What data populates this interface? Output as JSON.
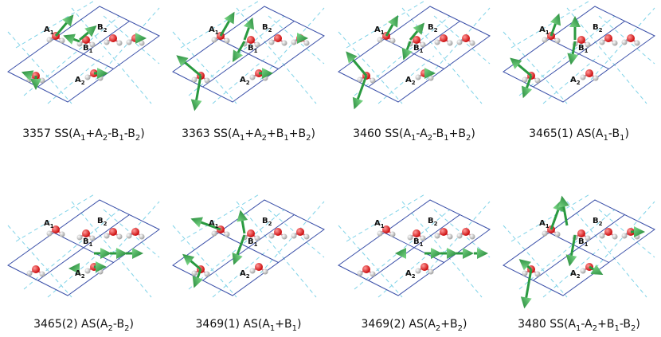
{
  "panels": [
    {
      "caption": [
        "3357 SS(A",
        "1",
        "+A",
        "2",
        "-B",
        "1",
        "-B",
        "2",
        ")"
      ],
      "atoms": [
        [
          "A",
          "1"
        ],
        [
          "B",
          "2"
        ],
        [
          "B",
          "1"
        ],
        [
          "A",
          "2"
        ]
      ]
    },
    {
      "caption": [
        "3363 SS(A",
        "1",
        "+A",
        "2",
        "+B",
        "1",
        "+B",
        "2",
        ")"
      ],
      "atoms": [
        [
          "A",
          "1"
        ],
        [
          "B",
          "2"
        ],
        [
          "B",
          "1"
        ],
        [
          "A",
          "2"
        ]
      ]
    },
    {
      "caption": [
        "3460 SS(A",
        "1",
        "-A",
        "2",
        "-B",
        "1",
        "+B",
        "2",
        ")"
      ],
      "atoms": [
        [
          "A",
          "1"
        ],
        [
          "B",
          "2"
        ],
        [
          "B",
          "1"
        ],
        [
          "A",
          "2"
        ]
      ]
    },
    {
      "caption": [
        "3465(1) AS(A",
        "1",
        "-B",
        "1",
        ")"
      ],
      "atoms": [
        [
          "A",
          "1"
        ],
        [
          "B",
          "2"
        ],
        [
          "B",
          "1"
        ],
        [
          "A",
          "2"
        ]
      ]
    },
    {
      "caption": [
        "3465(2) AS(A",
        "2",
        "-B",
        "2",
        ")"
      ],
      "atoms": [
        [
          "A",
          "1"
        ],
        [
          "B",
          "2"
        ],
        [
          "B",
          "1"
        ],
        [
          "A",
          "2"
        ]
      ]
    },
    {
      "caption": [
        "3469(1) AS(A",
        "1",
        "+B",
        "1",
        ")"
      ],
      "atoms": [
        [
          "A",
          "1"
        ],
        [
          "B",
          "2"
        ],
        [
          "B",
          "1"
        ],
        [
          "A",
          "2"
        ]
      ]
    },
    {
      "caption": [
        "3469(2) AS(A",
        "2",
        "+B",
        "2",
        ")"
      ],
      "atoms": [
        [
          "A",
          "1"
        ],
        [
          "B",
          "2"
        ],
        [
          "B",
          "1"
        ],
        [
          "A",
          "2"
        ]
      ]
    },
    {
      "caption": [
        "3480 SS(A",
        "1",
        "-A",
        "2",
        "+B",
        "1",
        "-B",
        "2",
        ")"
      ],
      "atoms": [
        [
          "A",
          "1"
        ],
        [
          "B",
          "2"
        ],
        [
          "B",
          "1"
        ],
        [
          "A",
          "2"
        ]
      ]
    }
  ]
}
